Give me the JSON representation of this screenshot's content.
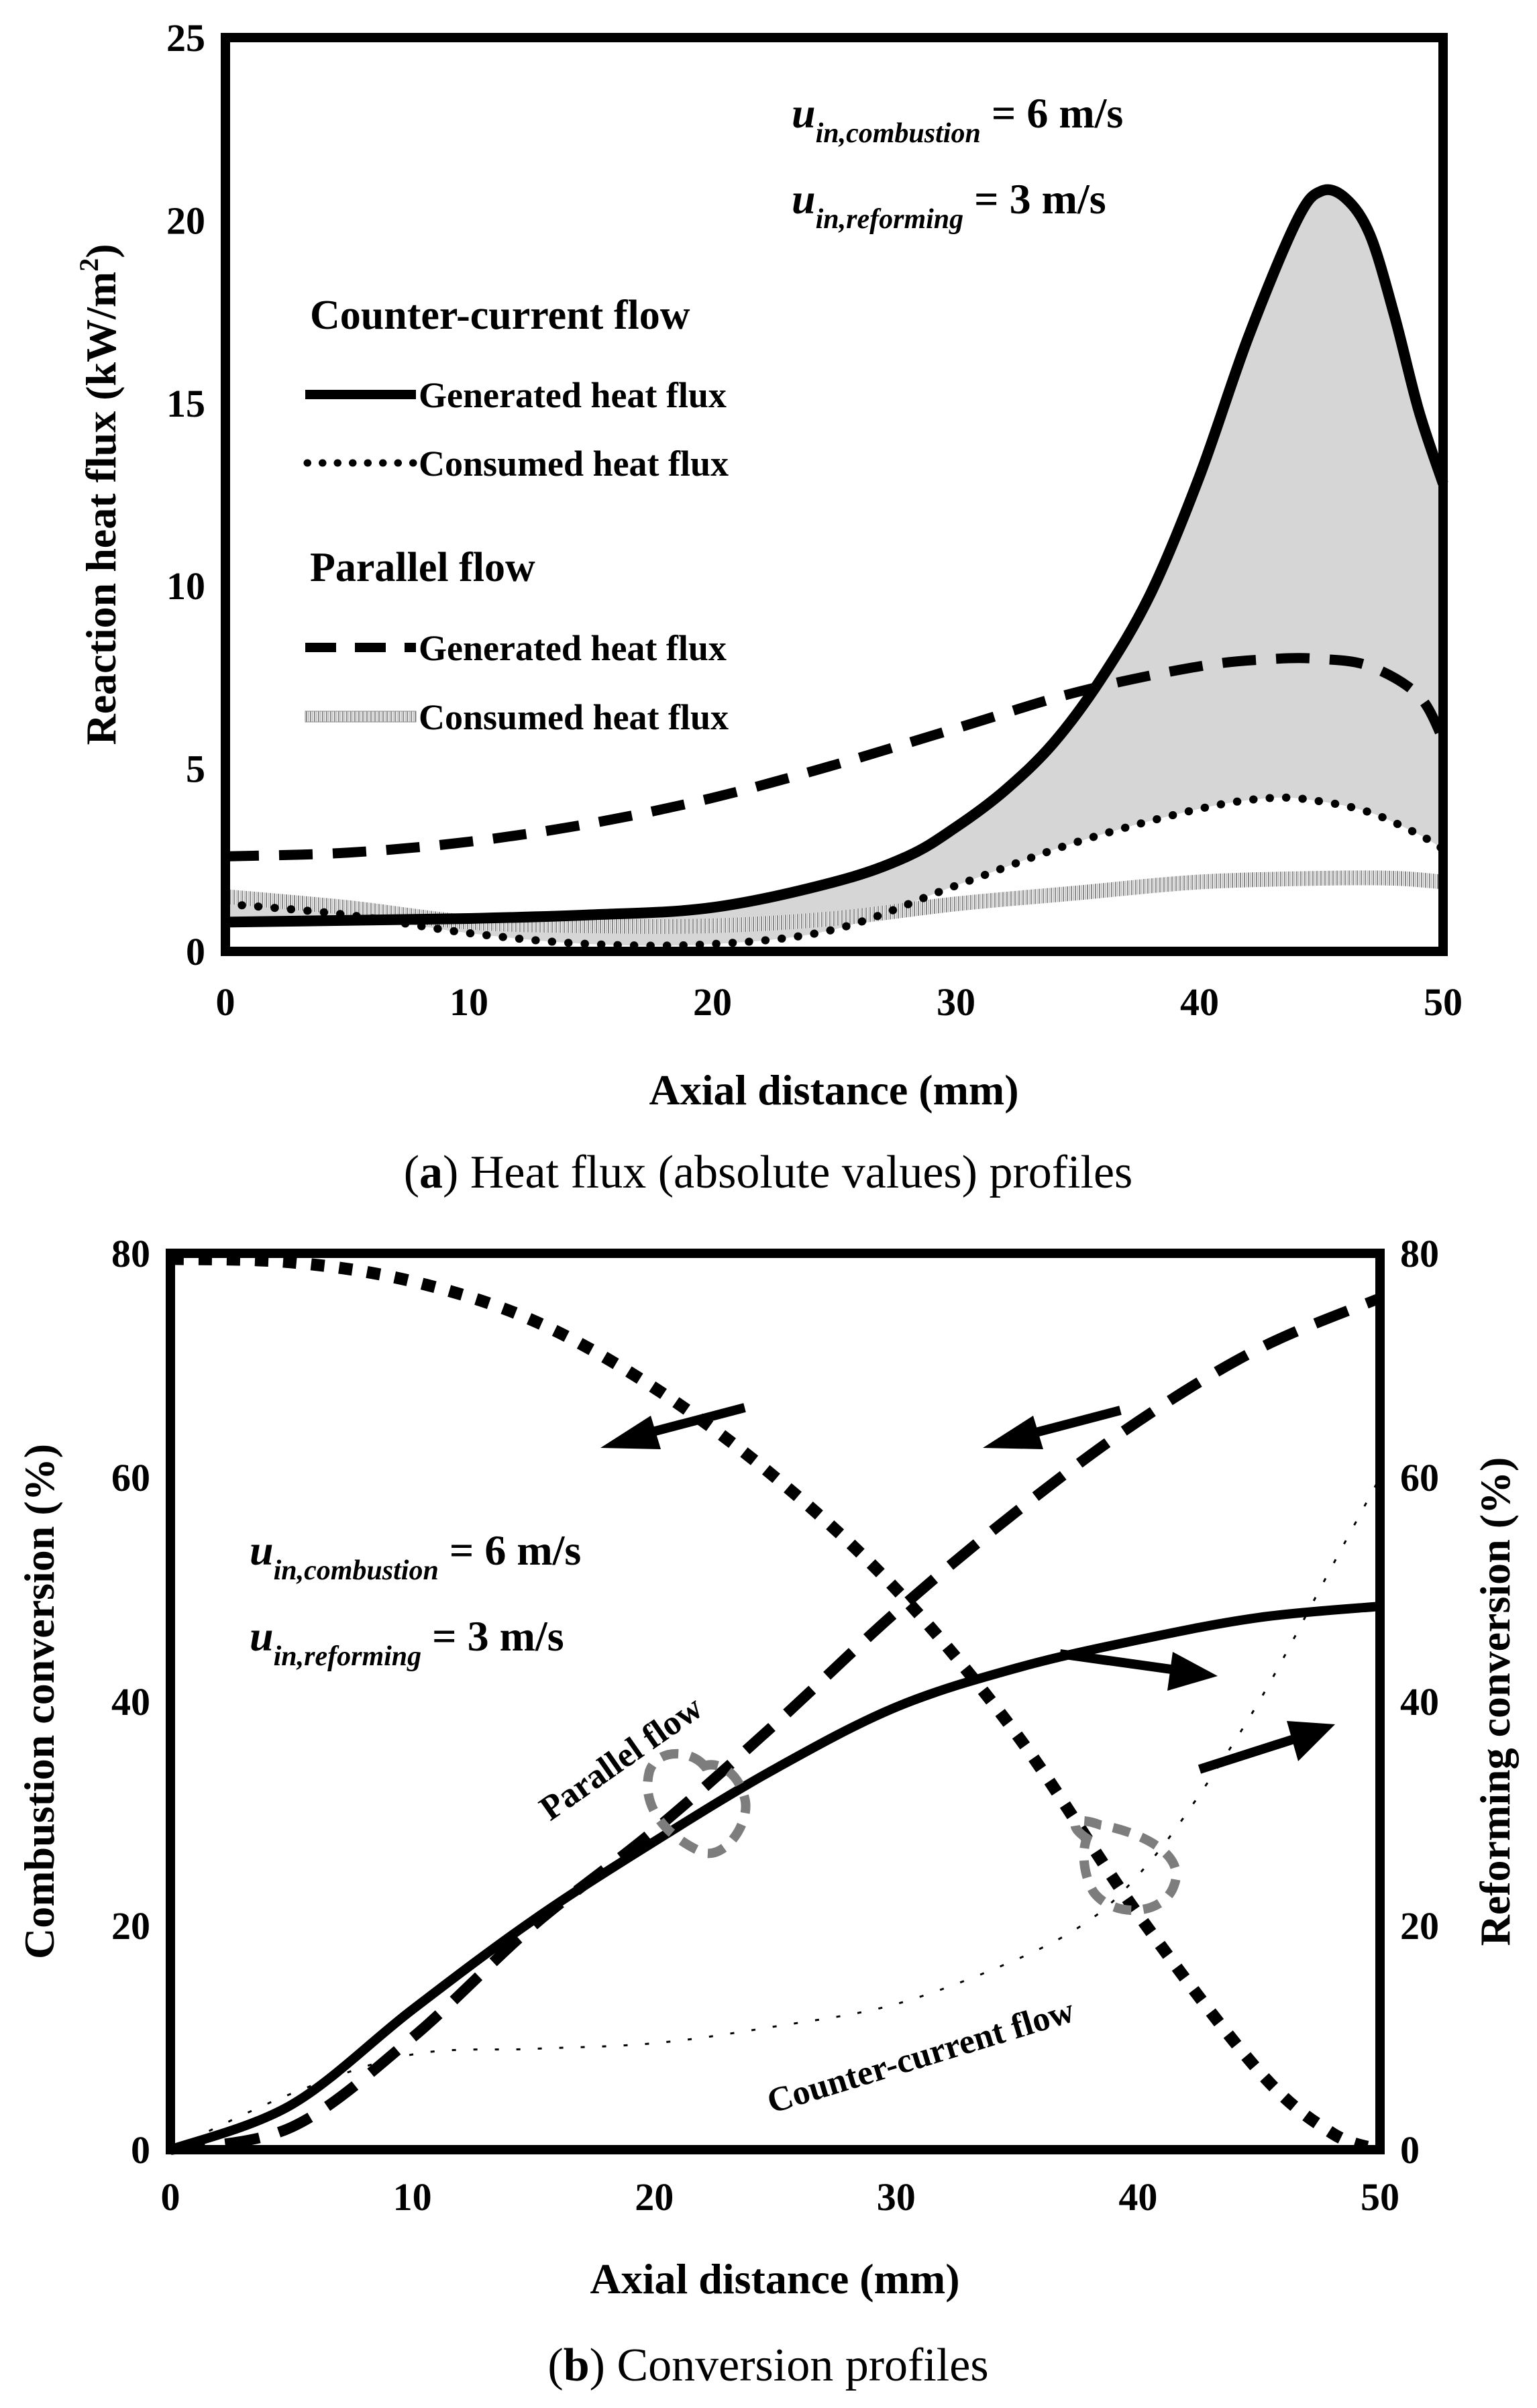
{
  "chart_data": [
    {
      "type": "line",
      "id": "heat_flux",
      "caption_prefix": "(",
      "caption_letter": "a",
      "caption_rest": ") Heat flux (absolute values) profiles",
      "xlabel": "Axial distance (mm)",
      "ylabel": "Reaction heat flux (kW/m",
      "ylabel_sup": "2",
      "ylabel_end": ")",
      "xlim": [
        0,
        50
      ],
      "ylim": [
        0,
        25
      ],
      "xticks": [
        0,
        10,
        20,
        30,
        40,
        50
      ],
      "yticks": [
        0,
        5,
        10,
        15,
        20,
        25
      ],
      "annotation": {
        "line1_u": "u",
        "line1_sub": "in,combustion",
        "line1_rest": " = 6 m/s",
        "line2_u": "u",
        "line2_sub": "in,reforming",
        "line2_rest": " = 3 m/s"
      },
      "legend": {
        "group1_title": "Counter-current flow",
        "group1_items": [
          "Generated heat flux",
          "Consumed heat flux"
        ],
        "group2_title": "Parallel flow",
        "group2_items": [
          "Generated heat flux",
          "Consumed heat flux"
        ]
      },
      "series": [
        {
          "name": "Counter-current generated heat flux",
          "style": "solid",
          "x": [
            0,
            5,
            10,
            15,
            20,
            25,
            28,
            30,
            32,
            34,
            36,
            38,
            40,
            42,
            44,
            45,
            46,
            47,
            48,
            49,
            50
          ],
          "y": [
            0.8,
            0.85,
            0.9,
            1.0,
            1.2,
            1.9,
            2.6,
            3.4,
            4.4,
            5.7,
            7.5,
            9.8,
            13.0,
            16.8,
            20.0,
            20.8,
            20.6,
            19.6,
            17.4,
            14.8,
            12.8
          ]
        },
        {
          "name": "Counter-current consumed heat flux",
          "style": "dotted",
          "x": [
            0,
            5,
            10,
            15,
            20,
            25,
            30,
            35,
            40,
            43,
            45,
            47,
            49,
            50
          ],
          "y": [
            1.3,
            1.0,
            0.5,
            0.2,
            0.2,
            0.6,
            1.8,
            3.0,
            3.9,
            4.2,
            4.1,
            3.8,
            3.2,
            2.8
          ]
        },
        {
          "name": "Parallel generated heat flux",
          "style": "dashed",
          "x": [
            0,
            5,
            10,
            15,
            20,
            25,
            30,
            35,
            40,
            43,
            45,
            47,
            49,
            50
          ],
          "y": [
            2.6,
            2.7,
            3.0,
            3.5,
            4.2,
            5.1,
            6.1,
            7.1,
            7.8,
            8.0,
            8.0,
            7.8,
            7.0,
            5.8
          ]
        },
        {
          "name": "Parallel consumed heat flux",
          "style": "hatched",
          "x": [
            0,
            5,
            10,
            15,
            20,
            25,
            30,
            35,
            40,
            45,
            48,
            50
          ],
          "y": [
            1.5,
            1.2,
            0.8,
            0.7,
            0.7,
            0.9,
            1.3,
            1.6,
            1.9,
            2.0,
            2.0,
            1.9
          ]
        }
      ]
    },
    {
      "type": "line",
      "id": "conversion",
      "caption_prefix": "(",
      "caption_letter": "b",
      "caption_rest": ") Conversion profiles",
      "xlabel": "Axial distance (mm)",
      "ylabel": "Combustion conversion (%)",
      "y2label": "Reforming conversion (%)",
      "xlim": [
        0,
        50
      ],
      "ylim": [
        0,
        80
      ],
      "y2lim": [
        0,
        80
      ],
      "xticks": [
        0,
        10,
        20,
        30,
        40,
        50
      ],
      "yticks": [
        0,
        20,
        40,
        60,
        80
      ],
      "y2ticks": [
        0,
        20,
        40,
        60,
        80
      ],
      "annotation": {
        "line1_u": "u",
        "line1_sub": "in,combustion",
        "line1_rest": " = 6 m/s",
        "line2_u": "u",
        "line2_sub": "in,reforming",
        "line2_rest": " = 3 m/s"
      },
      "flow_labels": [
        "Parallel flow",
        "Counter-current flow"
      ],
      "series": [
        {
          "name": "Counter-current combustion conversion",
          "style": "dotted-heavy",
          "x": [
            0,
            5,
            10,
            15,
            20,
            25,
            30,
            35,
            40,
            45,
            48,
            50
          ],
          "y": [
            79.5,
            79.2,
            77.5,
            74.0,
            68.0,
            60.0,
            50.0,
            37.0,
            21.0,
            7.0,
            1.5,
            0
          ]
        },
        {
          "name": "Parallel combustion conversion",
          "style": "dashed",
          "x": [
            0,
            5,
            10,
            15,
            20,
            25,
            30,
            35,
            40,
            45,
            50
          ],
          "y": [
            0,
            2.0,
            10.0,
            20.0,
            28.5,
            38.0,
            48.0,
            57.0,
            65.0,
            71.5,
            76.0
          ]
        },
        {
          "name": "Parallel reforming conversion",
          "style": "solid",
          "x": [
            0,
            5,
            10,
            15,
            20,
            25,
            30,
            35,
            40,
            45,
            50
          ],
          "y": [
            0,
            4.0,
            12.5,
            20.5,
            27.5,
            34.0,
            39.5,
            43.0,
            45.5,
            47.5,
            48.5
          ]
        },
        {
          "name": "Counter-current reforming conversion",
          "style": "sparse",
          "x": [
            0,
            5,
            10,
            15,
            20,
            25,
            30,
            35,
            38,
            40,
            42,
            45,
            48,
            50
          ],
          "y": [
            0,
            5.0,
            8.5,
            9.0,
            9.5,
            11.0,
            13.0,
            17.0,
            20.5,
            24.5,
            30.0,
            40.0,
            52.0,
            60.0
          ]
        }
      ]
    }
  ]
}
